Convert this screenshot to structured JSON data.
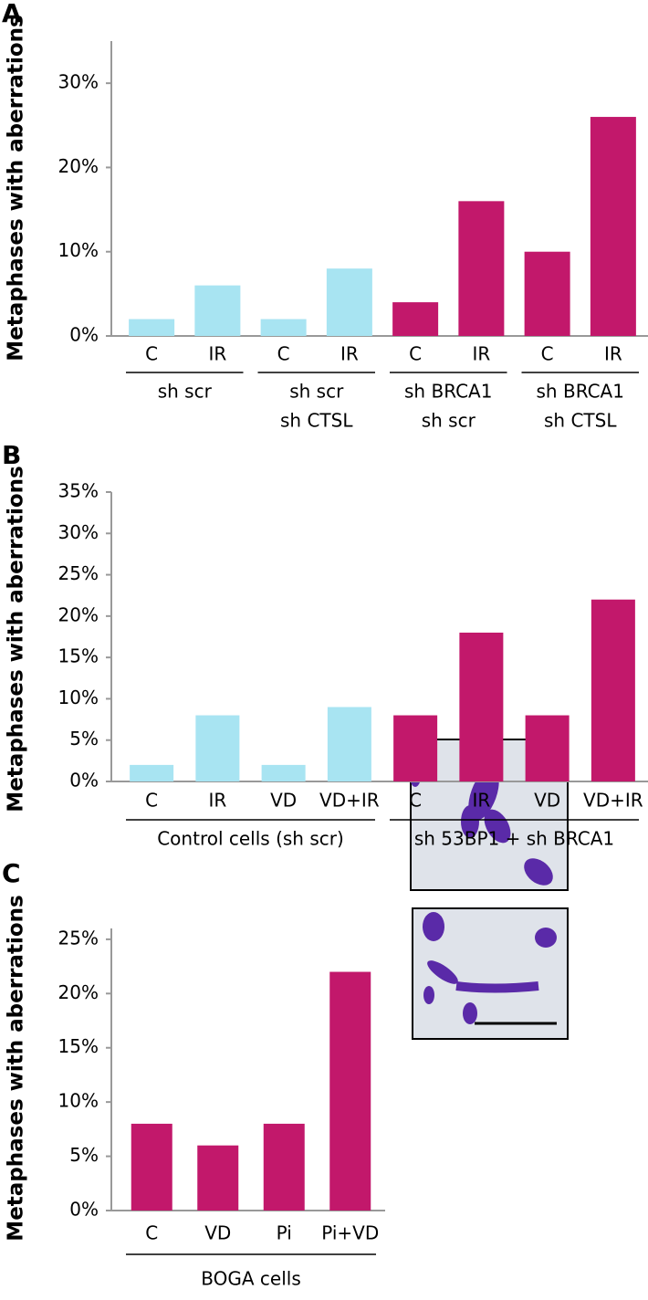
{
  "chart_data": [
    {
      "type": "bar",
      "panel": "A",
      "y_label": "Metaphases with aberrations",
      "ylim": [
        0,
        35
      ],
      "yticks": [
        {
          "value": 0,
          "label": "0%"
        },
        {
          "value": 10,
          "label": "10%"
        },
        {
          "value": 20,
          "label": "20%"
        },
        {
          "value": 30,
          "label": "30%"
        }
      ],
      "groups": [
        {
          "label": [
            "sh scr"
          ],
          "categories": [
            "C",
            "IR"
          ],
          "values": [
            2,
            6
          ],
          "color": "#a8e4f2"
        },
        {
          "label": [
            "sh scr",
            "sh CTSL"
          ],
          "categories": [
            "C",
            "IR"
          ],
          "values": [
            2,
            8
          ],
          "color": "#a8e4f2"
        },
        {
          "label": [
            "sh BRCA1",
            "sh scr"
          ],
          "categories": [
            "C",
            "IR"
          ],
          "values": [
            4,
            16
          ],
          "color": "#c2186b"
        },
        {
          "label": [
            "sh BRCA1",
            "sh CTSL"
          ],
          "categories": [
            "C",
            "IR"
          ],
          "values": [
            10,
            26
          ],
          "color": "#c2186b"
        }
      ]
    },
    {
      "type": "bar",
      "panel": "B",
      "y_label": "Metaphases with aberrations",
      "ylim": [
        0,
        35
      ],
      "yticks": [
        {
          "value": 0,
          "label": "0%"
        },
        {
          "value": 5,
          "label": "5%"
        },
        {
          "value": 10,
          "label": "10%"
        },
        {
          "value": 15,
          "label": "15%"
        },
        {
          "value": 20,
          "label": "20%"
        },
        {
          "value": 25,
          "label": "25%"
        },
        {
          "value": 30,
          "label": "30%"
        },
        {
          "value": 35,
          "label": "35%"
        }
      ],
      "groups": [
        {
          "label": [
            "Control cells (sh scr)"
          ],
          "categories": [
            "C",
            "IR",
            "VD",
            "VD+IR"
          ],
          "values": [
            2,
            8,
            2,
            9
          ],
          "color": "#a8e4f2"
        },
        {
          "label": [
            "sh 53BP1 + sh BRCA1"
          ],
          "categories": [
            "C",
            "IR",
            "VD",
            "VD+IR"
          ],
          "values": [
            8,
            18,
            8,
            22
          ],
          "color": "#c2186b"
        }
      ]
    },
    {
      "type": "bar",
      "panel": "C",
      "y_label": "Metaphases with aberrations",
      "ylim": [
        0,
        26
      ],
      "yticks": [
        {
          "value": 0,
          "label": "0%"
        },
        {
          "value": 5,
          "label": "5%"
        },
        {
          "value": 10,
          "label": "10%"
        },
        {
          "value": 15,
          "label": "15%"
        },
        {
          "value": 20,
          "label": "20%"
        },
        {
          "value": 25,
          "label": "25%"
        }
      ],
      "groups": [
        {
          "label": [
            "BOGA cells"
          ],
          "categories": [
            "C",
            "VD",
            "Pi",
            "Pi+VD"
          ],
          "values": [
            8,
            6,
            8,
            22
          ],
          "color": "#c2186b"
        }
      ]
    }
  ]
}
